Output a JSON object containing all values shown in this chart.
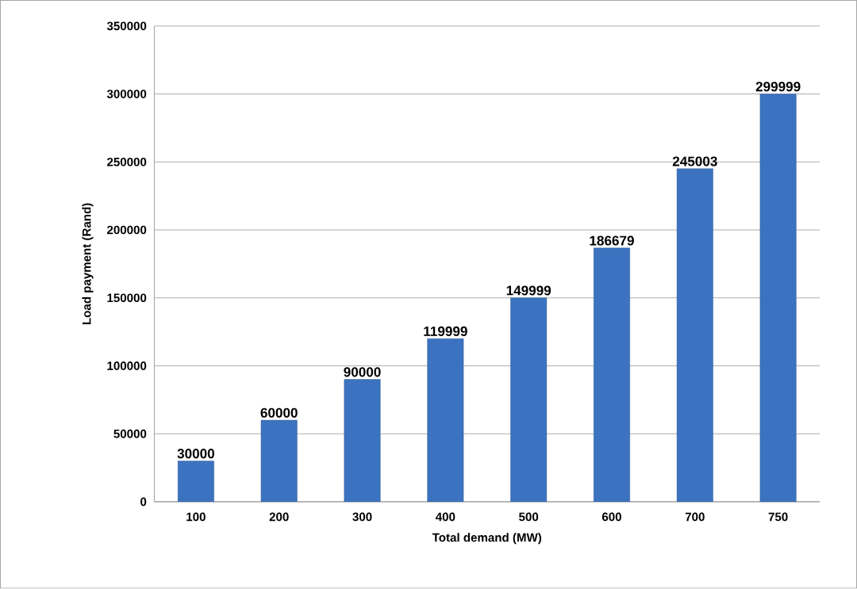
{
  "chart_data": {
    "type": "bar",
    "xlabel": "Total demand (MW)",
    "ylabel": "Load payment (Rand)",
    "categories": [
      "100",
      "200",
      "300",
      "400",
      "500",
      "600",
      "700",
      "750"
    ],
    "values": [
      30000,
      60000,
      90000,
      119999,
      149999,
      186679,
      245003,
      299999
    ],
    "color": "#3b73c0",
    "ylim": [
      0,
      350000
    ],
    "yticks": [
      0,
      50000,
      100000,
      150000,
      200000,
      250000,
      300000,
      350000
    ],
    "grid": "y",
    "data_labels": true
  }
}
